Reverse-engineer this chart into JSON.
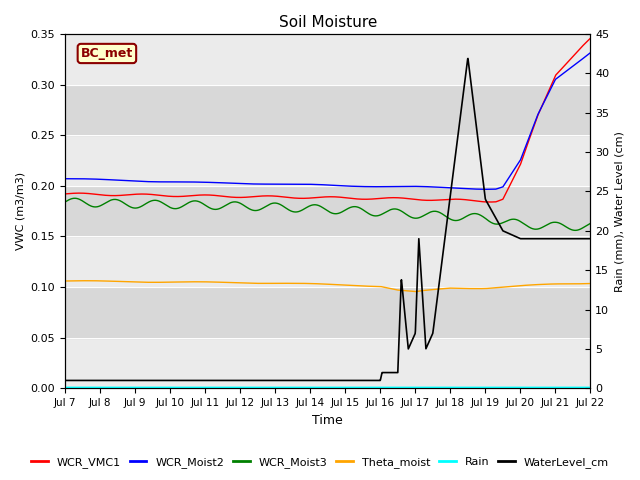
{
  "title": "Soil Moisture",
  "xlabel": "Time",
  "ylabel_left": "VWC (m3/m3)",
  "ylabel_right": "Rain (mm), Water Level (cm)",
  "ylim_left": [
    0,
    0.35
  ],
  "ylim_right": [
    0,
    45
  ],
  "annotation_label": "BC_met",
  "annotation_color": "#8B0000",
  "annotation_bg": "#FFFFCC",
  "x_tick_labels": [
    "Jul 7",
    "Jul 8",
    "Jul 9",
    "Jul 10",
    "Jul 11",
    "Jul 12",
    "Jul 13",
    "Jul 14",
    "Jul 15",
    "Jul 16",
    "Jul 17",
    "Jul 18",
    "Jul 19",
    "Jul 20",
    "Jul 21",
    "Jul 22"
  ],
  "legend_labels": [
    "WCR_VMC1",
    "WCR_Moist2",
    "WCR_Moist3",
    "Theta_moist",
    "Rain",
    "WaterLevel_cm"
  ],
  "legend_colors": [
    "red",
    "blue",
    "green",
    "orange",
    "cyan",
    "black"
  ],
  "plot_bg_color": "#e8e8e8",
  "band_color": "#d0d0d0",
  "band_light": "#e8e8e8"
}
